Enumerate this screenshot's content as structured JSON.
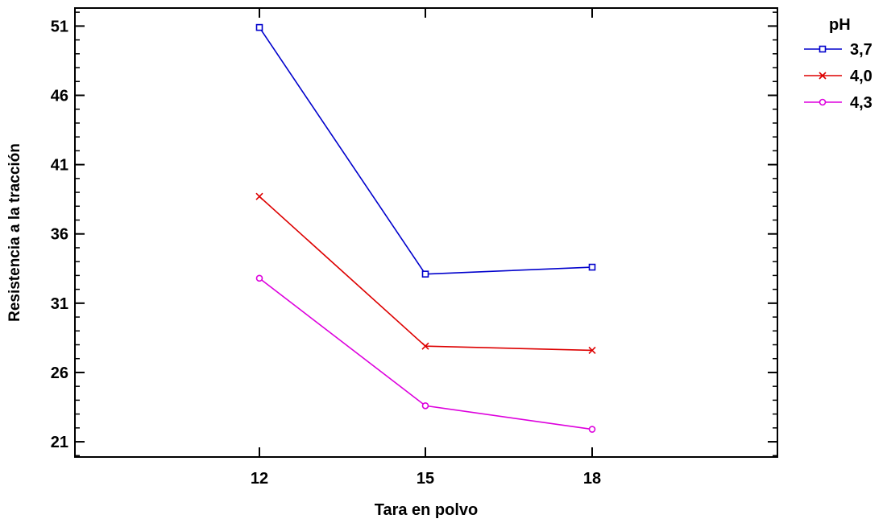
{
  "chart_data": {
    "type": "line",
    "xlabel": "Tara en polvo",
    "ylabel": "Resistencia a la tracción",
    "categories": [
      "12",
      "15",
      "18"
    ],
    "yticks": [
      21,
      26,
      31,
      36,
      41,
      46,
      51
    ],
    "ylim": [
      19.9,
      52.3
    ],
    "grid": false,
    "legend": {
      "title": "pH",
      "placement": "right"
    },
    "series": [
      {
        "name": "3,7",
        "values": [
          50.9,
          33.1,
          33.6
        ],
        "color": "#0000cc",
        "marker": "square"
      },
      {
        "name": "4,0",
        "values": [
          38.7,
          27.9,
          27.6
        ],
        "color": "#dd0000",
        "marker": "x"
      },
      {
        "name": "4,3",
        "values": [
          32.8,
          23.6,
          21.9
        ],
        "color": "#dd00dd",
        "marker": "circle"
      }
    ]
  }
}
